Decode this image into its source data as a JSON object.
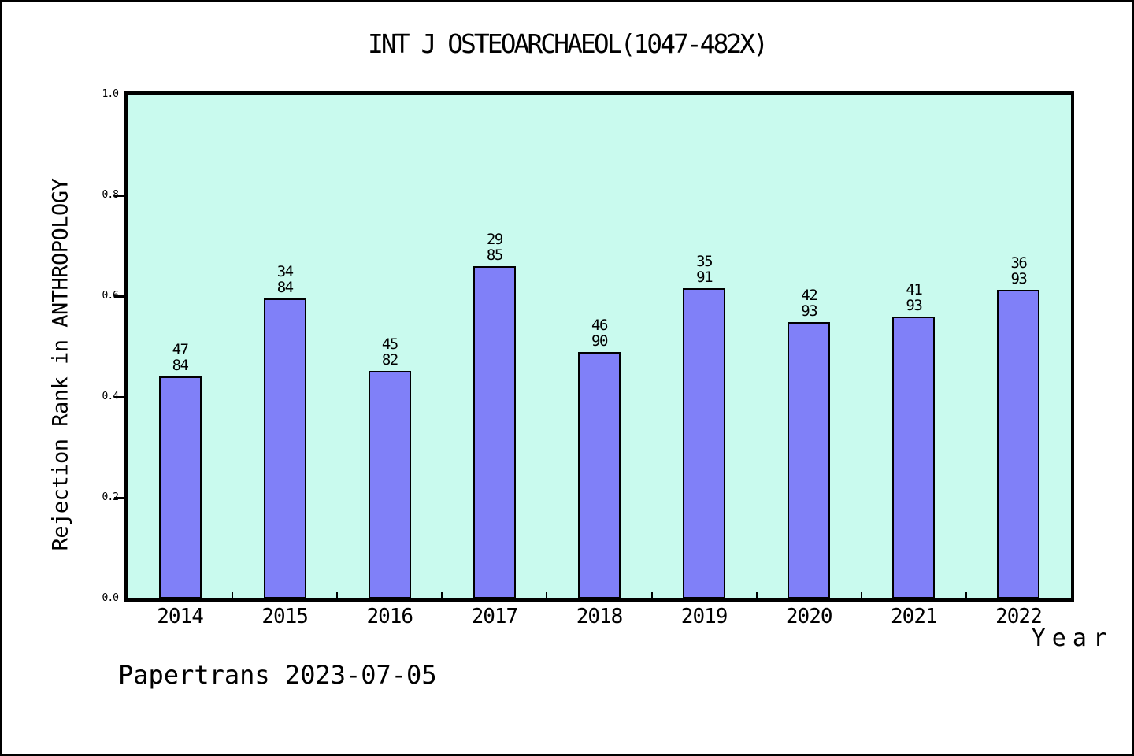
{
  "title": "INT J OSTEOARCHAEOL(1047-482X)",
  "footer": "Papertrans 2023-07-05",
  "colors": {
    "bar_fill": "#8080F8",
    "bar_border": "#000000",
    "plot_background": "#C9FAEE",
    "page_background": "#FFFFFF",
    "frame": "#000000"
  },
  "chart_data": {
    "type": "bar",
    "title": "INT J OSTEOARCHAEOL(1047-482X)",
    "xlabel": "Year",
    "ylabel": "Rejection Rank in ANTHROPOLOGY",
    "ylim": [
      0,
      1
    ],
    "yticks": [
      "0.0",
      "0.2",
      "0.4",
      "0.6",
      "0.8",
      "1.0"
    ],
    "grid": false,
    "legend": false,
    "categories": [
      "2014",
      "2015",
      "2016",
      "2017",
      "2018",
      "2019",
      "2020",
      "2021",
      "2022"
    ],
    "values": [
      0.4405,
      0.5952,
      0.4512,
      0.6588,
      0.4889,
      0.6154,
      0.5484,
      0.5591,
      0.6129
    ],
    "bar_labels": [
      {
        "rank": "47",
        "total": "84"
      },
      {
        "rank": "34",
        "total": "84"
      },
      {
        "rank": "45",
        "total": "82"
      },
      {
        "rank": "29",
        "total": "85"
      },
      {
        "rank": "46",
        "total": "90"
      },
      {
        "rank": "35",
        "total": "91"
      },
      {
        "rank": "42",
        "total": "93"
      },
      {
        "rank": "41",
        "total": "93"
      },
      {
        "rank": "36",
        "total": "93"
      }
    ]
  }
}
